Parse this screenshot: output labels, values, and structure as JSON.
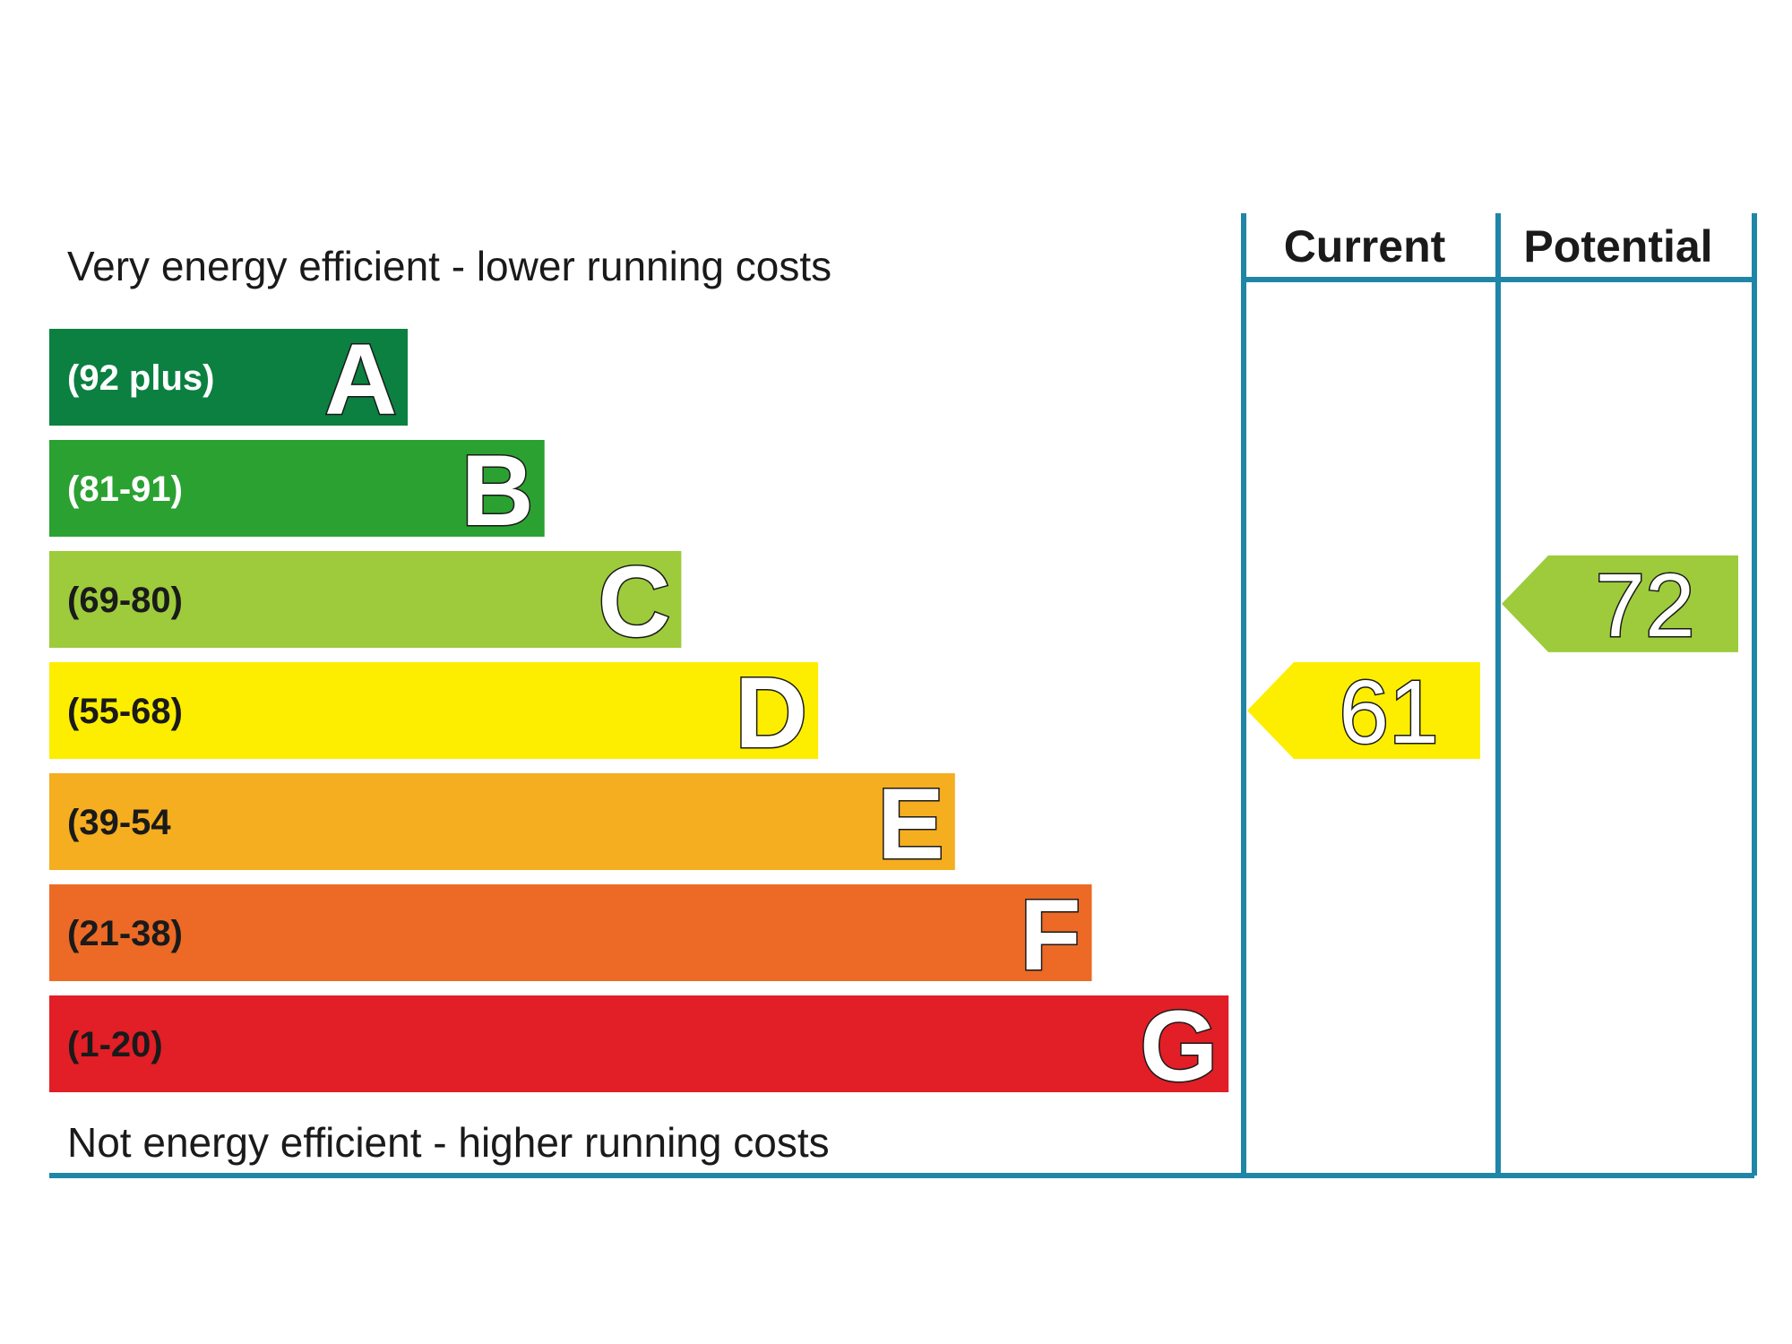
{
  "chart_data": {
    "type": "bar",
    "title_top": "Very energy efficient - lower running costs",
    "title_bottom": "Not energy efficient - higher running costs",
    "columns": [
      "Current",
      "Potential"
    ],
    "bands": [
      {
        "letter": "A",
        "range": "(92 plus)",
        "min": 92,
        "max": 100,
        "color": "#0b8040",
        "text_color": "#ffffff"
      },
      {
        "letter": "B",
        "range": "(81-91)",
        "min": 81,
        "max": 91,
        "color": "#2aa131",
        "text_color": "#ffffff"
      },
      {
        "letter": "C",
        "range": "(69-80)",
        "min": 69,
        "max": 80,
        "color": "#9dcb3c",
        "text_color": "#1a1a1a"
      },
      {
        "letter": "D",
        "range": "(55-68)",
        "min": 55,
        "max": 68,
        "color": "#fdee00",
        "text_color": "#1a1a1a"
      },
      {
        "letter": "E",
        "range": "(39-54",
        "min": 39,
        "max": 54,
        "color": "#f5ae20",
        "text_color": "#1a1a1a"
      },
      {
        "letter": "F",
        "range": "(21-38)",
        "min": 21,
        "max": 38,
        "color": "#ec6a25",
        "text_color": "#1a1a1a"
      },
      {
        "letter": "G",
        "range": "(1-20)",
        "min": 1,
        "max": 20,
        "color": "#e21e26",
        "text_color": "#1a1a1a"
      }
    ],
    "ratings": [
      {
        "column": "Current",
        "value": 61,
        "value_label": "61",
        "band": "D",
        "color": "#fdee00"
      },
      {
        "column": "Potential",
        "value": 72,
        "value_label": "72",
        "band": "C",
        "color": "#9dcb3c"
      }
    ],
    "frame_color": "#1f86a8"
  }
}
